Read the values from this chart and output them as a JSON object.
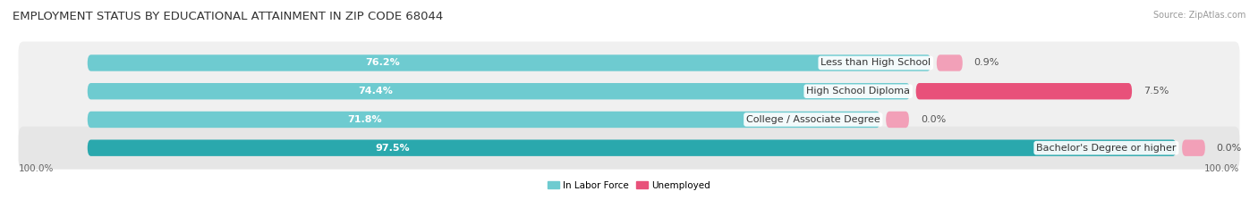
{
  "title": "EMPLOYMENT STATUS BY EDUCATIONAL ATTAINMENT IN ZIP CODE 68044",
  "source": "Source: ZipAtlas.com",
  "categories": [
    "Less than High School",
    "High School Diploma",
    "College / Associate Degree",
    "Bachelor's Degree or higher"
  ],
  "labor_force": [
    76.2,
    74.4,
    71.8,
    97.5
  ],
  "unemployed": [
    0.9,
    7.5,
    0.0,
    0.0
  ],
  "color_labor_light": "#6ecbd0",
  "color_labor_dark": "#2aa8ad",
  "color_unemployed_bright": "#e8517a",
  "color_unemployed_light": "#f2a0b8",
  "row_bg_even": "#f0f0f0",
  "row_bg_odd": "#e6e6e6",
  "legend_labor": "In Labor Force",
  "legend_unemployed": "Unemployed",
  "x_left_label": "100.0%",
  "x_right_label": "100.0%",
  "title_fontsize": 9.5,
  "bar_label_fontsize": 8,
  "cat_label_fontsize": 8,
  "pct_label_fontsize": 8
}
